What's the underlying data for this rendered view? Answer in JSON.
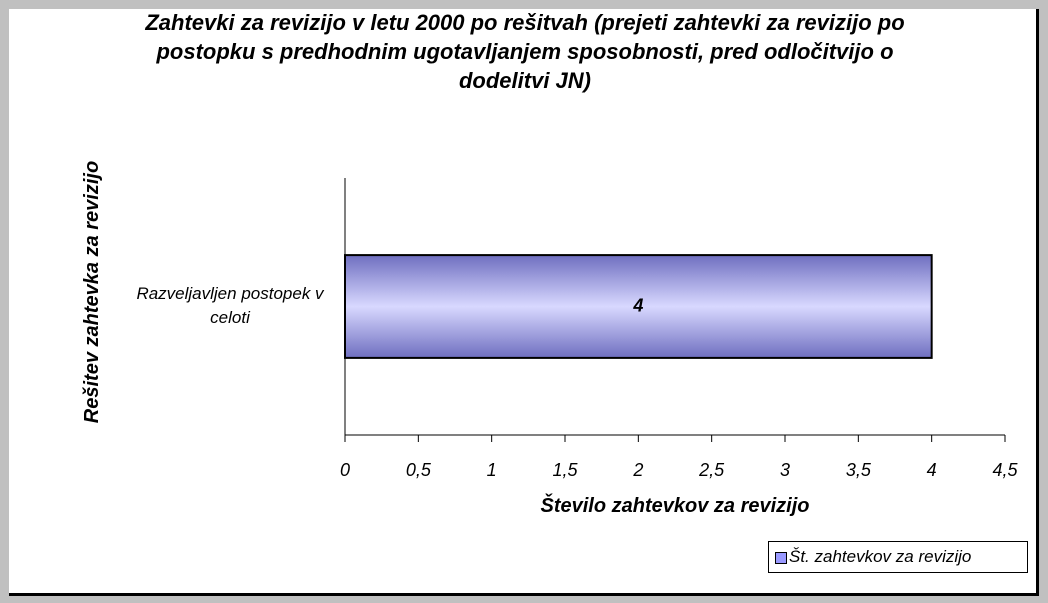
{
  "chart_data": {
    "type": "hbar",
    "title": "Zahtevki za revizijo v letu 2000 po rešitvah (prejeti zahtevki za revizijo po postopku s predhodnim ugotavljanjem sposobnosti, pred odločitvijo o dodelitvi JN)",
    "x_label": "Število zahtevkov za revizijo",
    "y_label": "Rešitev zahtevka za revizijo",
    "categories": [
      "Razveljavljen postopek v celoti"
    ],
    "series": [
      {
        "name": "Št. zahtevkov za revizijo",
        "color": "#9999ff",
        "values": [
          4
        ]
      }
    ],
    "xlim": [
      0,
      4.5
    ],
    "xticks": [
      0,
      {
        "value": 0.5,
        "label": "0,5"
      },
      1,
      {
        "value": 1.5,
        "label": "1,5"
      },
      2,
      {
        "value": 2.5,
        "label": "2,5"
      },
      3,
      {
        "value": 3.5,
        "label": "3,5"
      },
      4,
      {
        "value": 4.5,
        "label": "4,5"
      }
    ],
    "legend": "bottom-right"
  }
}
